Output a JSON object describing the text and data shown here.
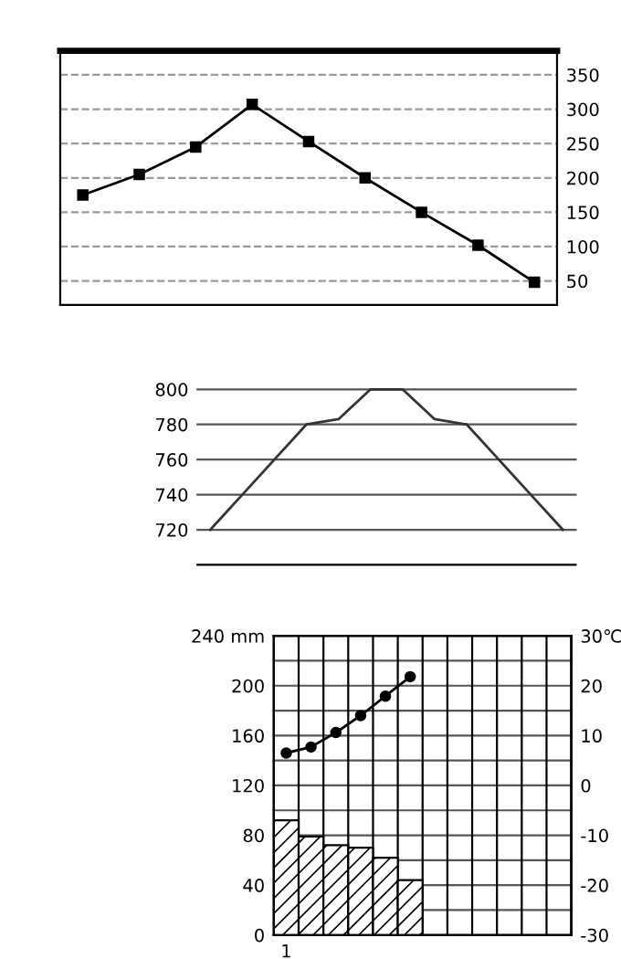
{
  "chart_data": [
    {
      "type": "line",
      "categories": [
        null,
        null,
        null,
        null,
        null,
        null,
        null,
        null,
        null
      ],
      "series": [
        {
          "color": "#000000",
          "values": [
            175,
            205,
            245,
            307,
            253,
            200,
            150,
            102,
            48
          ]
        }
      ],
      "ylim": [
        15,
        385
      ],
      "yticks": [
        50,
        100,
        150,
        200,
        250,
        300,
        350
      ],
      "grid": "y",
      "marker": "square",
      "line_style": "solid",
      "tick_labels": "y",
      "legend": false
    },
    {
      "type": "line",
      "categories": [
        null,
        null,
        null,
        null,
        null,
        null,
        null,
        null,
        null,
        null,
        null,
        null
      ],
      "series": [
        {
          "color": "#333333",
          "values": [
            720,
            740,
            760,
            780,
            783,
            800,
            800,
            783,
            780,
            760,
            740,
            720
          ]
        }
      ],
      "ylim": [
        700,
        800
      ],
      "yticks": [
        720,
        740,
        760,
        780,
        800
      ],
      "grid": "y",
      "marker": "none",
      "line_style": "solid",
      "tick_labels": "y",
      "legend": false
    },
    {
      "type": "bar",
      "categories": [
        "1",
        null,
        null,
        null,
        null,
        null,
        null,
        null,
        null,
        null,
        null,
        null
      ],
      "series": [
        {
          "type": "bar",
          "color": "#000000",
          "values": [
            92,
            79,
            72,
            70,
            62,
            44,
            null,
            null,
            null,
            null,
            null,
            null
          ]
        },
        {
          "type": "line",
          "axis": "y2",
          "color": "#000000",
          "values": [
            6.5,
            7.7,
            10.6,
            14,
            17.9,
            21.8,
            null,
            null,
            null,
            null,
            null,
            null
          ]
        }
      ],
      "ylim": [
        0,
        240
      ],
      "yticks": [
        0,
        {
          "value": 20,
          "label": null
        },
        40,
        {
          "value": 60,
          "label": null
        },
        80,
        {
          "value": 100,
          "label": null
        },
        120,
        {
          "value": 140,
          "label": null
        },
        160,
        {
          "value": 180,
          "label": null
        },
        200,
        {
          "value": 220,
          "label": null
        },
        {
          "value": 240,
          "label": "240 mm"
        }
      ],
      "y2lim": [
        -30,
        30
      ],
      "y2ticks": [
        -30,
        -20,
        -10,
        0,
        10,
        20,
        {
          "value": 30,
          "label": "30℃"
        }
      ],
      "grid": true,
      "marker": "circle",
      "line_style": "solid",
      "legend": false
    }
  ]
}
